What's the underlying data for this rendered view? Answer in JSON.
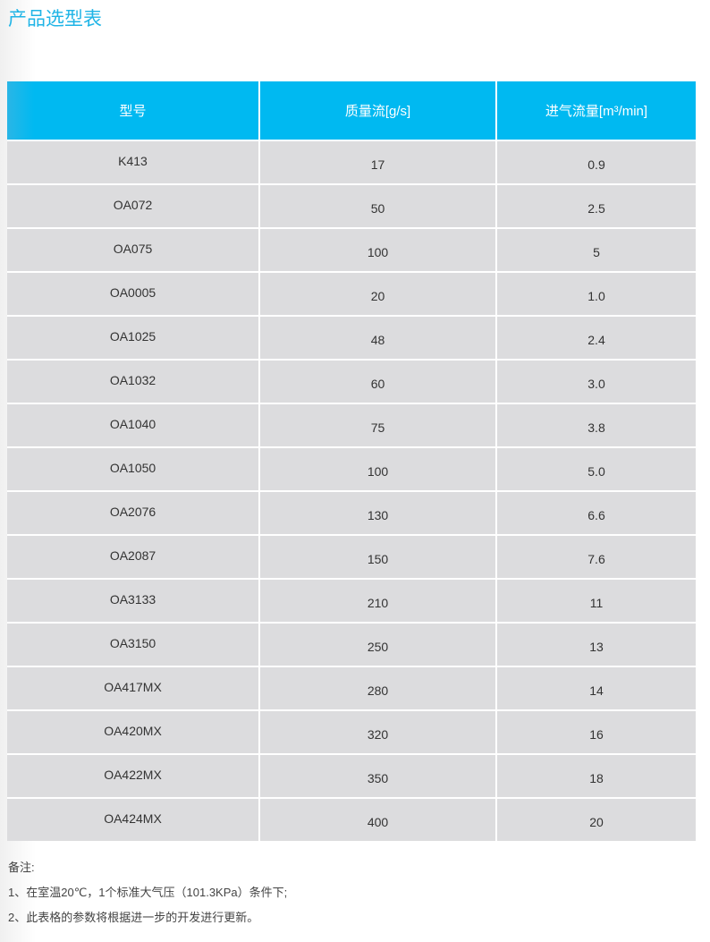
{
  "title": "产品选型表",
  "table": {
    "headers": [
      "型号",
      "质量流[g/s]",
      "进气流量[m³/min]"
    ],
    "rows": [
      [
        "K413",
        "17",
        "0.9"
      ],
      [
        "OA072",
        "50",
        "2.5"
      ],
      [
        "OA075",
        "100",
        "5"
      ],
      [
        "OA0005",
        "20",
        "1.0"
      ],
      [
        "OA1025",
        "48",
        "2.4"
      ],
      [
        "OA1032",
        "60",
        "3.0"
      ],
      [
        "OA1040",
        "75",
        "3.8"
      ],
      [
        "OA1050",
        "100",
        "5.0"
      ],
      [
        "OA2076",
        "130",
        "6.6"
      ],
      [
        "OA2087",
        "150",
        "7.6"
      ],
      [
        "OA3133",
        "210",
        "11"
      ],
      [
        "OA3150",
        "250",
        "13"
      ],
      [
        "OA417MX",
        "280",
        "14"
      ],
      [
        "OA420MX",
        "320",
        "16"
      ],
      [
        "OA422MX",
        "350",
        "18"
      ],
      [
        "OA424MX",
        "400",
        "20"
      ]
    ]
  },
  "notes": {
    "label": "备注:",
    "items": [
      "1、在室温20℃，1个标准大气压（101.3KPa）条件下;",
      "2、此表格的参数将根据进一步的开发进行更新。"
    ]
  },
  "colors": {
    "accent": "#00b9f1",
    "row_bg": "#dcdcde"
  }
}
